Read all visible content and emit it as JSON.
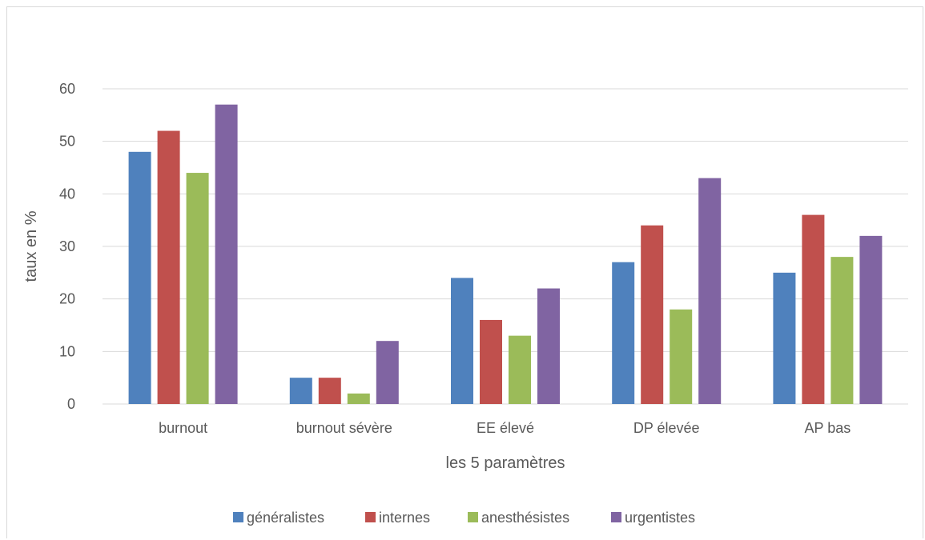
{
  "chart_data": {
    "type": "bar",
    "categories": [
      "burnout",
      "burnout sévère",
      "EE élevé",
      "DP élevée",
      "AP bas"
    ],
    "series": [
      {
        "name": "généralistes",
        "color": "#4f81bd",
        "values": [
          48,
          5,
          24,
          27,
          25
        ]
      },
      {
        "name": "internes",
        "color": "#c0504d",
        "values": [
          52,
          5,
          16,
          34,
          36
        ]
      },
      {
        "name": "anesthésistes",
        "color": "#9bbb59",
        "values": [
          44,
          2,
          13,
          18,
          28
        ]
      },
      {
        "name": "urgentistes",
        "color": "#8064a2",
        "values": [
          57,
          12,
          22,
          43,
          32
        ]
      }
    ],
    "title": "",
    "xlabel": "les 5 paramètres",
    "ylabel": "taux en %",
    "ylim": [
      0,
      60
    ],
    "yticks": [
      "0",
      "10",
      "20",
      "30",
      "40",
      "50",
      "60"
    ],
    "grid": true,
    "legend_position": "bottom"
  }
}
